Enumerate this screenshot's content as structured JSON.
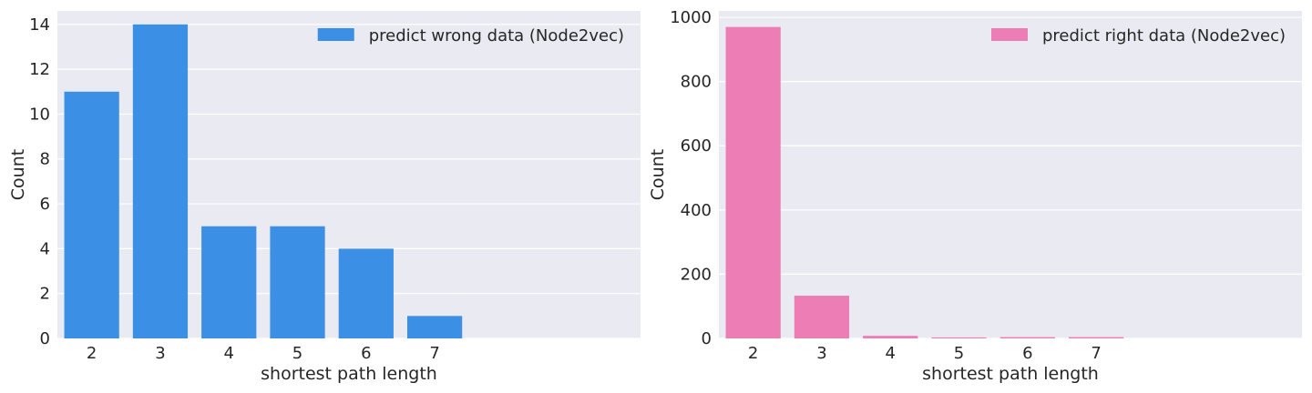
{
  "chart_data": [
    {
      "type": "bar",
      "categories": [
        "2",
        "3",
        "4",
        "5",
        "6",
        "7"
      ],
      "series": [
        {
          "name": "predict wrong data (Node2vec)",
          "values": [
            11,
            14,
            5,
            5,
            4,
            1
          ],
          "color": "#3b90e6"
        }
      ],
      "xlabel": "shortest path length",
      "ylabel": "Count",
      "yticks": [
        0,
        2,
        4,
        6,
        8,
        10,
        12,
        14
      ],
      "ylim": [
        0,
        14.6
      ],
      "xlim": [
        -0.5,
        8.0
      ],
      "grid": true,
      "legend": "top-right",
      "background": "#eaeaf2"
    },
    {
      "type": "bar",
      "categories": [
        "2",
        "3",
        "4",
        "5",
        "6",
        "7"
      ],
      "series": [
        {
          "name": "predict right data (Node2vec)",
          "values": [
            970,
            133,
            8,
            3,
            4,
            4
          ],
          "color": "#ed7db5"
        }
      ],
      "xlabel": "shortest path length",
      "ylabel": "Count",
      "yticks": [
        0,
        200,
        400,
        600,
        800,
        1000
      ],
      "ylim": [
        0,
        1020
      ],
      "xlim": [
        -0.5,
        8.0
      ],
      "grid": true,
      "legend": "top-right",
      "background": "#eaeaf2"
    }
  ]
}
